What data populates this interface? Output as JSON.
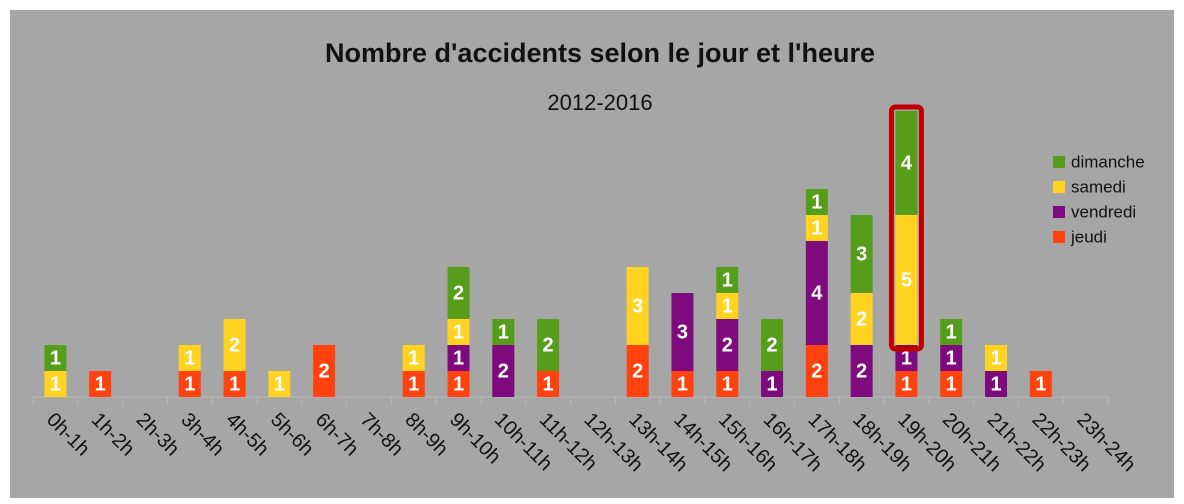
{
  "chart_data": {
    "type": "stacked_bar",
    "title": "Nombre d'accidents selon le jour et l'heure",
    "subtitle": "2012-2016",
    "categories": [
      "0h-1h",
      "1h-2h",
      "2h-3h",
      "3h-4h",
      "4h-5h",
      "5h-6h",
      "6h-7h",
      "7h-8h",
      "8h-9h",
      "9h-10h",
      "10h-11h",
      "11h-12h",
      "12h-13h",
      "13h-14h",
      "14h-15h",
      "15h-16h",
      "16h-17h",
      "17h-18h",
      "18h-19h",
      "19h-20h",
      "20h-21h",
      "21h-22h",
      "22h-23h",
      "23h-24h"
    ],
    "series": [
      {
        "name": "jeudi",
        "color": "#ff420e",
        "values": [
          null,
          1,
          null,
          1,
          1,
          null,
          2,
          null,
          1,
          1,
          null,
          1,
          null,
          2,
          1,
          1,
          null,
          2,
          null,
          1,
          1,
          null,
          1,
          null
        ]
      },
      {
        "name": "vendredi",
        "color": "#7e0a7e",
        "values": [
          null,
          null,
          null,
          null,
          null,
          null,
          null,
          null,
          null,
          1,
          2,
          null,
          null,
          null,
          3,
          2,
          1,
          4,
          2,
          1,
          1,
          1,
          null,
          null
        ]
      },
      {
        "name": "samedi",
        "color": "#ffd320",
        "values": [
          1,
          null,
          null,
          1,
          2,
          1,
          null,
          null,
          1,
          1,
          null,
          null,
          null,
          3,
          null,
          1,
          null,
          1,
          2,
          5,
          null,
          1,
          null,
          null
        ]
      },
      {
        "name": "dimanche",
        "color": "#579d1c",
        "values": [
          1,
          null,
          null,
          null,
          null,
          null,
          null,
          null,
          null,
          2,
          1,
          2,
          null,
          null,
          null,
          1,
          2,
          1,
          3,
          4,
          1,
          null,
          null,
          null
        ]
      }
    ],
    "legend": "right"
  }
}
